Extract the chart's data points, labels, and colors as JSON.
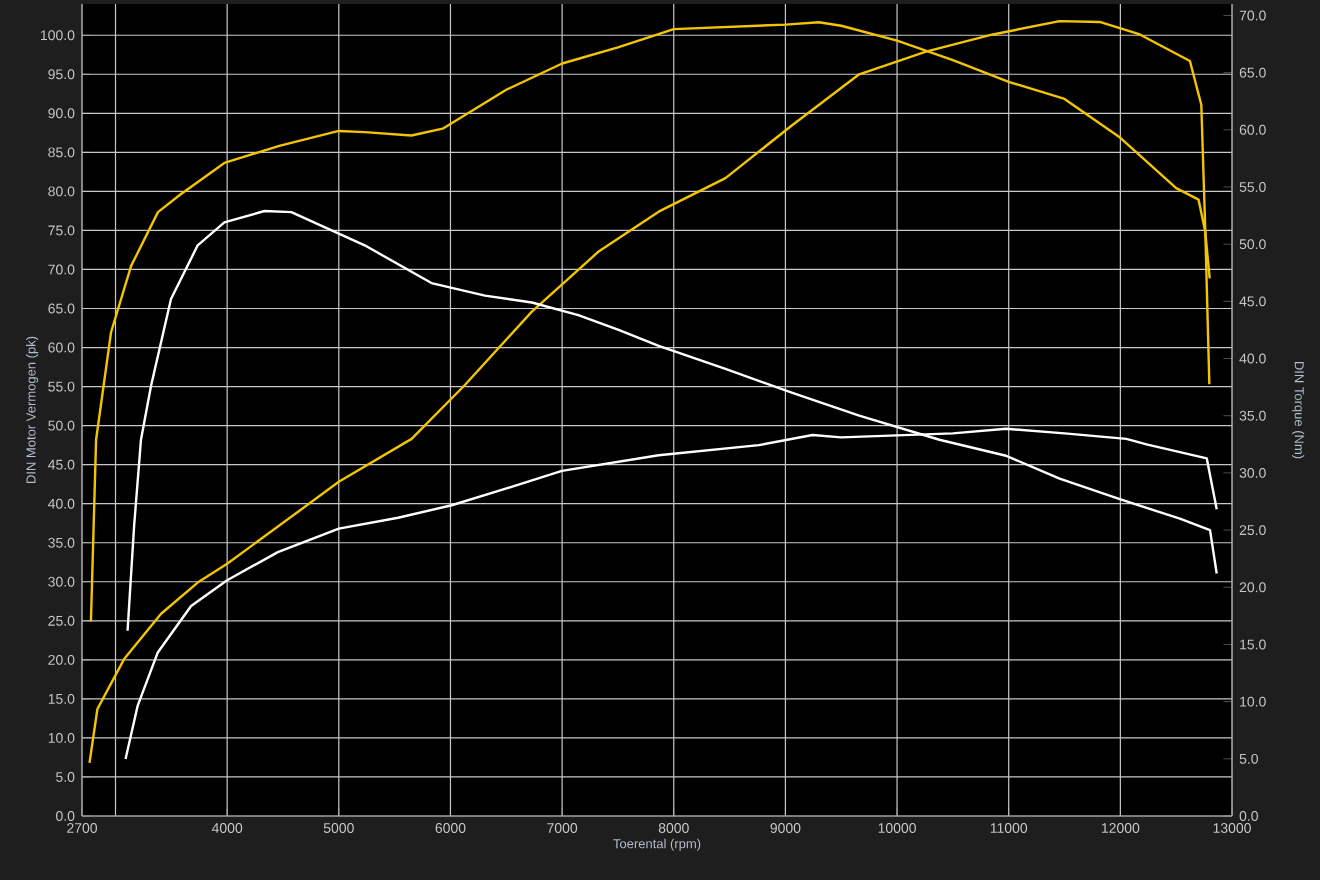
{
  "chart_data": {
    "type": "line",
    "xlabel": "Toerental (rpm)",
    "ylabel": "DIN Motor Vermogen (pk)",
    "y2label": "DIN Torque (Nm)",
    "xlim": [
      2700,
      13000
    ],
    "xticks": [
      {
        "value": 2700,
        "label": "2700"
      },
      {
        "value": 3000,
        "label": null
      },
      4000,
      5000,
      6000,
      7000,
      8000,
      9000,
      10000,
      11000,
      12000,
      13000
    ],
    "ylim": [
      0,
      104
    ],
    "yticks": [
      {
        "value": 0,
        "label": "0.0"
      },
      {
        "value": 5,
        "label": "5.0"
      },
      {
        "value": 10,
        "label": "10.0"
      },
      {
        "value": 15,
        "label": "15.0"
      },
      {
        "value": 20,
        "label": "20.0"
      },
      {
        "value": 25,
        "label": "25.0"
      },
      {
        "value": 30,
        "label": "30.0"
      },
      {
        "value": 35,
        "label": "35.0"
      },
      {
        "value": 40,
        "label": "40.0"
      },
      {
        "value": 45,
        "label": "45.0"
      },
      {
        "value": 50,
        "label": "50.0"
      },
      {
        "value": 55,
        "label": "55.0"
      },
      {
        "value": 60,
        "label": "60.0"
      },
      {
        "value": 65,
        "label": "65.0"
      },
      {
        "value": 70,
        "label": "70.0"
      },
      {
        "value": 75,
        "label": "75.0"
      },
      {
        "value": 80,
        "label": "80.0"
      },
      {
        "value": 85,
        "label": "85.0"
      },
      {
        "value": 90,
        "label": "90.0"
      },
      {
        "value": 95,
        "label": "95.0"
      },
      {
        "value": 100,
        "label": "100.0"
      }
    ],
    "y2lim": [
      0,
      71
    ],
    "y2ticks": [
      {
        "value": 0,
        "label": "0.0"
      },
      {
        "value": 5,
        "label": "5.0"
      },
      {
        "value": 10,
        "label": "10.0"
      },
      {
        "value": 15,
        "label": "15.0"
      },
      {
        "value": 20,
        "label": "20.0"
      },
      {
        "value": 25,
        "label": "25.0"
      },
      {
        "value": 30,
        "label": "30.0"
      },
      {
        "value": 35,
        "label": "35.0"
      },
      {
        "value": 40,
        "label": "40.0"
      },
      {
        "value": 45,
        "label": "45.0"
      },
      {
        "value": 50,
        "label": "50.0"
      },
      {
        "value": 55,
        "label": "55.0"
      },
      {
        "value": 60,
        "label": "60.0"
      },
      {
        "value": 65,
        "label": "65.0"
      },
      {
        "value": 70,
        "label": "70.0"
      }
    ],
    "grid": true,
    "legend": false,
    "marker": "none",
    "line_style": "solid",
    "series": [
      {
        "color": "#f2c500",
        "x": [
          2767,
          2838,
          3077,
          3408,
          3736,
          4000,
          5000,
          5652,
          6129,
          6729,
          7327,
          7865,
          8463,
          9063,
          9661,
          10259,
          10858,
          11456,
          11815,
          12174,
          12623,
          12725,
          12761,
          12797
        ],
        "values": [
          6.8,
          13.7,
          20.1,
          25.9,
          29.9,
          32.3,
          42.8,
          48.3,
          55.2,
          64.6,
          72.3,
          77.4,
          81.7,
          88.5,
          95.0,
          97.9,
          100.1,
          101.8,
          101.7,
          100.1,
          96.7,
          91.1,
          74.8,
          55.3
        ]
      },
      {
        "color": "#f2c500",
        "axis": "y2",
        "x": [
          2780,
          2826,
          2960,
          3140,
          3380,
          3575,
          3975,
          4467,
          5000,
          5232,
          5650,
          5930,
          6500,
          7000,
          7500,
          8000,
          9000,
          9300,
          9500,
          10000,
          10500,
          11000,
          11500,
          12000,
          12500,
          12700,
          12760,
          12800
        ],
        "values": [
          17.0,
          32.9,
          42.3,
          48.1,
          52.8,
          54.3,
          57.1,
          58.6,
          59.9,
          59.8,
          59.5,
          60.1,
          63.5,
          65.8,
          67.2,
          68.8,
          69.2,
          69.4,
          69.1,
          67.8,
          66.1,
          64.2,
          62.7,
          59.3,
          54.9,
          53.9,
          51.1,
          47.0
        ]
      },
      {
        "color": "#ffffff",
        "x": [
          3090,
          3198,
          3377,
          3677,
          4000,
          4454,
          5000,
          5531,
          6011,
          6488,
          6998,
          7865,
          8762,
          9243,
          9500,
          10500,
          10976,
          11500,
          12054,
          12234,
          12774,
          12863
        ],
        "values": [
          7.3,
          14.1,
          20.9,
          26.9,
          30.2,
          33.8,
          36.8,
          38.2,
          39.8,
          41.9,
          44.2,
          46.2,
          47.5,
          48.8,
          48.5,
          49.0,
          49.6,
          49.0,
          48.3,
          47.6,
          45.8,
          39.3
        ]
      },
      {
        "color": "#ffffff",
        "axis": "y2",
        "x": [
          3108,
          3167,
          3228,
          3318,
          3497,
          3736,
          3975,
          4334,
          4575,
          5232,
          5830,
          6309,
          6729,
          7145,
          7506,
          7865,
          8463,
          9063,
          9661,
          10379,
          10976,
          11456,
          11995,
          12533,
          12803,
          12863
        ],
        "values": [
          16.2,
          25.4,
          32.9,
          37.6,
          45.2,
          49.9,
          51.9,
          52.9,
          52.8,
          49.9,
          46.6,
          45.5,
          44.9,
          43.8,
          42.5,
          41.1,
          39.1,
          37.0,
          35.0,
          32.9,
          31.5,
          29.5,
          27.7,
          26.0,
          25.0,
          21.2
        ]
      }
    ]
  }
}
